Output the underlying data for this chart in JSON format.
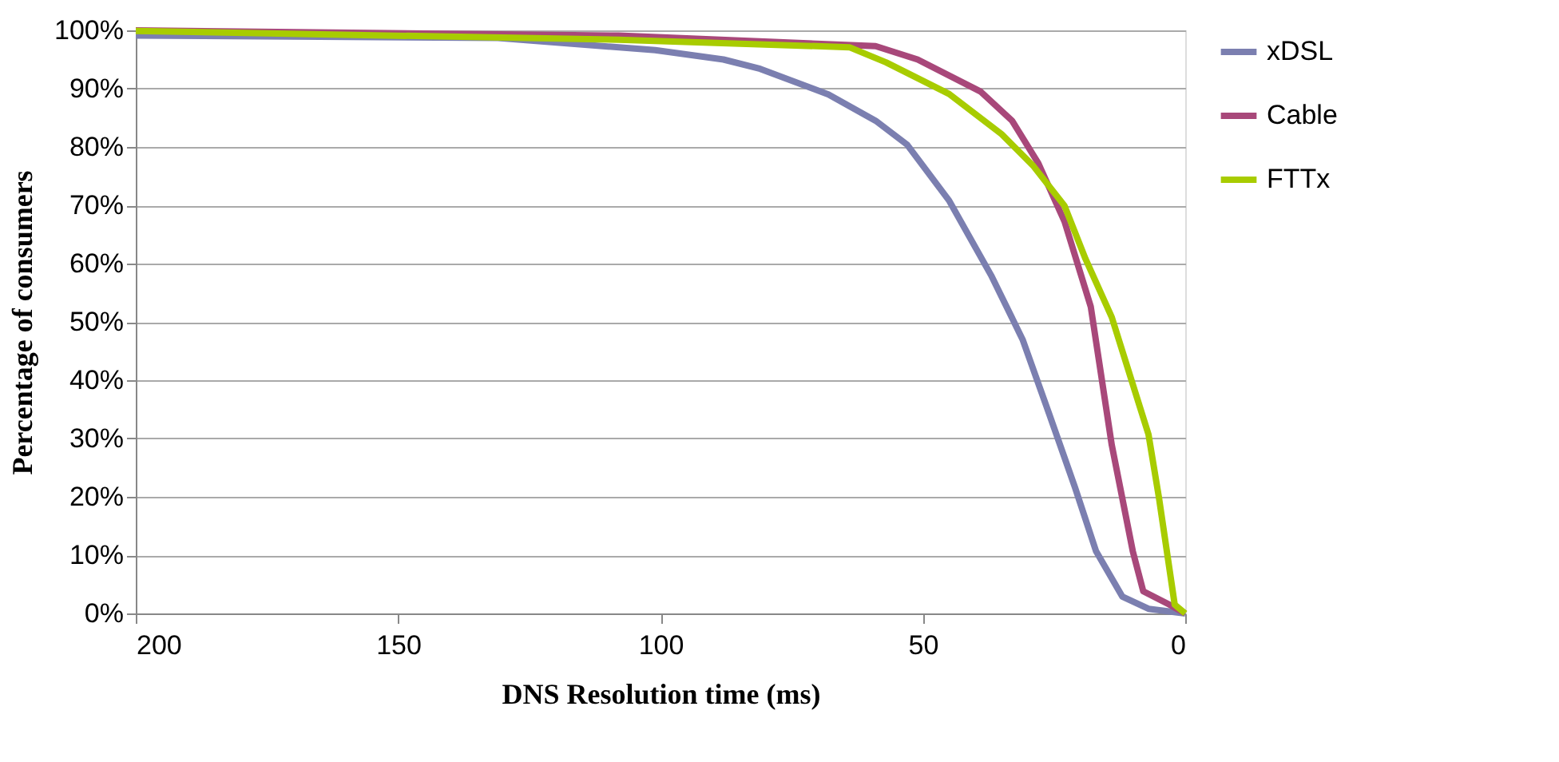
{
  "chart_data": {
    "type": "line",
    "xlabel": "DNS Resolution time (ms)",
    "ylabel": "Percentage of consumers",
    "xlim": [
      200,
      0
    ],
    "xticks": [
      200,
      150,
      100,
      50,
      0
    ],
    "ylim": [
      0,
      100
    ],
    "yticks": [
      {
        "value": 0,
        "label": "0%"
      },
      {
        "value": 10,
        "label": "10%"
      },
      {
        "value": 20,
        "label": "20%"
      },
      {
        "value": 30,
        "label": "30%"
      },
      {
        "value": 40,
        "label": "40%"
      },
      {
        "value": 50,
        "label": "50%"
      },
      {
        "value": 60,
        "label": "60%"
      },
      {
        "value": 70,
        "label": "70%"
      },
      {
        "value": 80,
        "label": "80%"
      },
      {
        "value": 90,
        "label": "90%"
      },
      {
        "value": 100,
        "label": "100%"
      }
    ],
    "grid": "y",
    "legend": "right",
    "marker": "none",
    "line_style": "solid",
    "series": [
      {
        "name": "xDSL",
        "color": "#7b7fb0",
        "x": [
          200,
          131,
          101,
          88,
          81,
          68,
          59,
          53,
          45,
          37,
          31,
          26,
          21,
          17,
          12,
          7,
          0
        ],
        "values": [
          99.1,
          98.7,
          96.6,
          95,
          93.4,
          89,
          84.5,
          80.4,
          70.8,
          58,
          47,
          34.4,
          21.6,
          10.7,
          2.9,
          0.8,
          0
        ]
      },
      {
        "name": "Cable",
        "color": "#a8487a",
        "x": [
          200,
          108,
          59,
          51,
          39,
          33,
          28,
          23,
          18,
          14,
          10,
          8,
          3,
          0
        ],
        "values": [
          100,
          99.1,
          97.3,
          95,
          89.5,
          84.5,
          77.2,
          67.2,
          52.6,
          28.9,
          10.7,
          3.8,
          1.5,
          0
        ]
      },
      {
        "name": "FTTx",
        "color": "#a8cc00",
        "x": [
          200,
          108,
          64,
          57,
          45,
          35,
          29,
          23,
          19,
          14,
          7,
          5,
          2,
          0
        ],
        "values": [
          99.9,
          98.4,
          97.1,
          94.5,
          89.1,
          82.2,
          76.8,
          69.9,
          60.8,
          50.8,
          30.7,
          19.8,
          1.5,
          0
        ]
      }
    ]
  }
}
